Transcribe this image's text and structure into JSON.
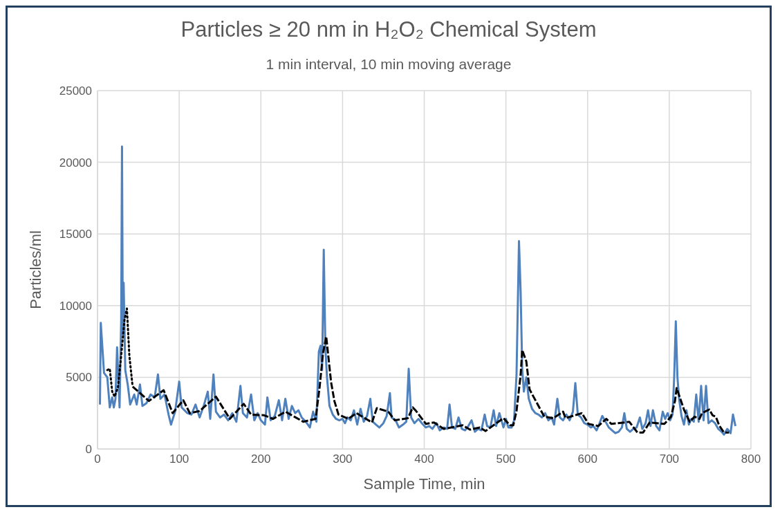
{
  "chart_data": {
    "type": "line",
    "title": "Particles ≥ 20 nm in H₂O₂ Chemical System",
    "subtitle": "1 min interval, 10 min moving average",
    "xlabel": "Sample Time, min",
    "ylabel": "Particles/ml",
    "xlim": [
      0,
      800
    ],
    "xticks": [
      0,
      100,
      200,
      300,
      400,
      500,
      600,
      700,
      800
    ],
    "ylim": [
      0,
      25000
    ],
    "yticks": [
      0,
      5000,
      10000,
      15000,
      20000,
      25000
    ],
    "grid": true,
    "series": [
      {
        "color": "#4f81bd",
        "line_style": "solid",
        "x": [
          3,
          4,
          8,
          12,
          15,
          18,
          20,
          22,
          24,
          27,
          29,
          30,
          31,
          32,
          34,
          37,
          40,
          45,
          48,
          52,
          55,
          60,
          65,
          70,
          74,
          77,
          82,
          87,
          90,
          95,
          100,
          103,
          110,
          115,
          120,
          125,
          130,
          135,
          138,
          142,
          145,
          150,
          155,
          160,
          165,
          170,
          175,
          178,
          183,
          188,
          192,
          196,
          200,
          205,
          208,
          212,
          217,
          222,
          226,
          230,
          234,
          238,
          242,
          246,
          250,
          255,
          260,
          264,
          268,
          271,
          273,
          275,
          277,
          279,
          281,
          284,
          288,
          292,
          296,
          300,
          303,
          306,
          310,
          314,
          318,
          322,
          326,
          330,
          334,
          337,
          341,
          345,
          350,
          354,
          358,
          360,
          365,
          369,
          374,
          378,
          381,
          384,
          388,
          393,
          397,
          402,
          406,
          410,
          415,
          419,
          424,
          428,
          431,
          434,
          438,
          442,
          446,
          450,
          454,
          458,
          462,
          466,
          470,
          474,
          477,
          481,
          485,
          488,
          492,
          497,
          500,
          503,
          507,
          510,
          513,
          516,
          518,
          520,
          522,
          525,
          528,
          532,
          536,
          540,
          544,
          548,
          552,
          556,
          559,
          563,
          566,
          570,
          574,
          578,
          582,
          585,
          588,
          592,
          596,
          600,
          604,
          607,
          611,
          614,
          618,
          622,
          626,
          630,
          634,
          638,
          642,
          645,
          648,
          652,
          656,
          660,
          664,
          667,
          671,
          674,
          677,
          680,
          684,
          688,
          692,
          695,
          698,
          701,
          704,
          706,
          708,
          710,
          712,
          715,
          718,
          721,
          724,
          727,
          730,
          733,
          736,
          739,
          742,
          745,
          748,
          752,
          756,
          760,
          764,
          767,
          771,
          775,
          778,
          781
        ],
        "values": [
          3100,
          8800,
          5300,
          5000,
          2900,
          3600,
          2900,
          3500,
          7100,
          2900,
          9000,
          21100,
          8000,
          11600,
          5500,
          4500,
          3100,
          3800,
          3100,
          4500,
          3000,
          3200,
          3800,
          3600,
          5200,
          3500,
          3800,
          2400,
          1700,
          2600,
          4700,
          2900,
          2500,
          2400,
          3100,
          2200,
          3000,
          4000,
          2100,
          5200,
          2600,
          2200,
          2400,
          2000,
          2500,
          1900,
          4400,
          2500,
          2200,
          3800,
          2000,
          2500,
          2000,
          1700,
          3600,
          2000,
          2300,
          3400,
          2000,
          3500,
          2100,
          3000,
          2500,
          2700,
          2200,
          1900,
          1500,
          2600,
          1900,
          6800,
          7200,
          5500,
          13900,
          7000,
          5000,
          3000,
          2400,
          2100,
          2000,
          2100,
          1800,
          2200,
          2000,
          2700,
          1700,
          2800,
          1900,
          2300,
          3500,
          1900,
          1700,
          1500,
          1800,
          2300,
          3900,
          2200,
          2000,
          1500,
          1700,
          1900,
          5600,
          2200,
          1800,
          2100,
          1800,
          1500,
          1600,
          1400,
          1800,
          1300,
          1500,
          1400,
          3100,
          1500,
          1400,
          2200,
          1400,
          1300,
          1600,
          2000,
          1200,
          1400,
          1300,
          2400,
          1600,
          1500,
          2700,
          1600,
          2500,
          1500,
          2100,
          1500,
          1500,
          2000,
          5200,
          14500,
          11000,
          5500,
          4000,
          5000,
          3500,
          2800,
          2500,
          2400,
          2200,
          2500,
          2000,
          2200,
          1700,
          3500,
          2200,
          2000,
          2400,
          2000,
          2600,
          4600,
          2400,
          2200,
          1800,
          1700,
          1500,
          1600,
          1300,
          1700,
          2300,
          1900,
          1500,
          1300,
          1100,
          1200,
          1500,
          2500,
          1400,
          1200,
          1400,
          1500,
          2200,
          1400,
          1800,
          2700,
          1600,
          2700,
          1600,
          1300,
          2600,
          2100,
          2500,
          2000,
          2400,
          5000,
          8900,
          5000,
          3500,
          2300,
          1700,
          2700,
          1700,
          2100,
          1900,
          3800,
          1900,
          4400,
          2000,
          4400,
          1800,
          2000,
          1800,
          1400,
          1200,
          1000,
          1400,
          1100,
          2400,
          1600
        ]
      },
      {
        "color": "#000000",
        "line_style": "dotted",
        "x": [
          12,
          15,
          18,
          21,
          25,
          29,
          33,
          36,
          39,
          43
        ],
        "values": [
          5500,
          5600,
          4000,
          3650,
          4300,
          6500,
          9000,
          9800,
          6500,
          4350
        ]
      },
      {
        "color": "#000000",
        "line_style": "dashed",
        "x": [
          43,
          63,
          81,
          92,
          105,
          113,
          125,
          145,
          162,
          179,
          188,
          204,
          215,
          230,
          252,
          267,
          272,
          276,
          280,
          286,
          290,
          295,
          307,
          317,
          336,
          342,
          356,
          364,
          380,
          386,
          390,
          402,
          412,
          424,
          447,
          456,
          468,
          475,
          497,
          505,
          509,
          513,
          518,
          520,
          525,
          529,
          547,
          558,
          570,
          573,
          593,
          601,
          613,
          623,
          629,
          646,
          651,
          661,
          668,
          676,
          694,
          702,
          707,
          709,
          718,
          725,
          731,
          737,
          740,
          749,
          753,
          757,
          761,
          767,
          773
        ],
        "values": [
          4350,
          3350,
          4100,
          2500,
          3400,
          2500,
          2650,
          3650,
          2100,
          3150,
          2400,
          2350,
          2100,
          2600,
          1900,
          2100,
          4350,
          6650,
          7850,
          4650,
          3350,
          2400,
          2100,
          2500,
          1850,
          2850,
          2600,
          2000,
          2150,
          2900,
          2650,
          1750,
          1850,
          1400,
          1650,
          1350,
          1500,
          1250,
          2150,
          1650,
          1650,
          2650,
          5150,
          6900,
          6100,
          4150,
          2250,
          2150,
          2600,
          2150,
          2500,
          1750,
          1600,
          2100,
          1750,
          1850,
          1900,
          1150,
          1150,
          1850,
          1750,
          2250,
          3350,
          4250,
          2750,
          1900,
          2250,
          2100,
          2500,
          2750,
          2350,
          2250,
          1650,
          1150,
          1150
        ]
      }
    ]
  }
}
